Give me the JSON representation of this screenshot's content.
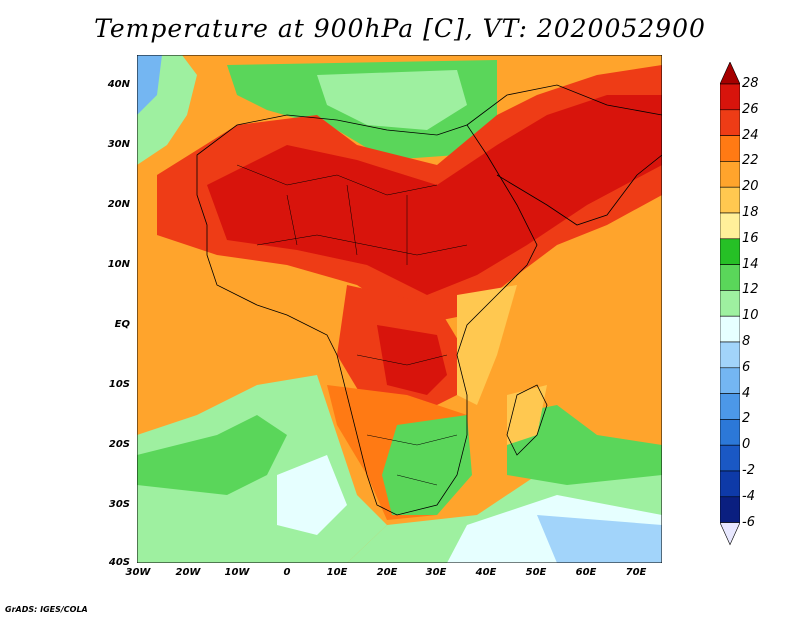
{
  "title": "Temperature at 900hPa [C], VT: 2020052900",
  "credit": "GrADS: IGES/COLA",
  "y_ticks": [
    "40N",
    "30N",
    "20N",
    "10N",
    "EQ",
    "10S",
    "20S",
    "30S",
    "40S"
  ],
  "x_ticks": [
    "30W",
    "20W",
    "10W",
    "0",
    "10E",
    "20E",
    "30E",
    "40E",
    "50E",
    "60E",
    "70E"
  ],
  "colorbar": {
    "levels": [
      "28",
      "26",
      "24",
      "22",
      "20",
      "18",
      "16",
      "14",
      "12",
      "10",
      "8",
      "6",
      "4",
      "2",
      "0",
      "-2",
      "-4",
      "-6"
    ],
    "colors": [
      "#a50000",
      "#d8140c",
      "#ee3c16",
      "#ff7a14",
      "#ffa42c",
      "#ffc850",
      "#fff09a",
      "#26c026",
      "#5ad65a",
      "#9ef0a0",
      "#e6ffff",
      "#a2d4fa",
      "#74b6f2",
      "#4c98e8",
      "#2c78d8",
      "#1a58c4",
      "#0e3aa8",
      "#0a1f80",
      "#e8e8ff"
    ]
  },
  "regions": {
    "ocean_atlantic": "#ffa42c",
    "sahara": "#d8140c",
    "med_sea": "#5ad65a",
    "south_ocean": "#9ef0a0",
    "south_ocean_cold": "#e6ffff",
    "indian_ocean": "#ffa42c"
  }
}
